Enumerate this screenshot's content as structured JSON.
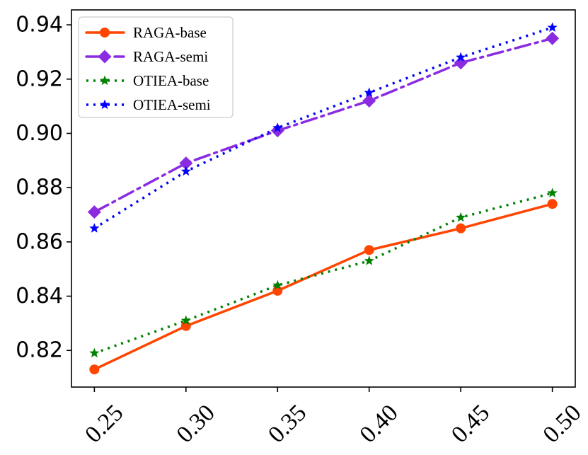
{
  "chart_data": {
    "type": "line",
    "title": "",
    "xlabel": "",
    "ylabel": "",
    "x": [
      0.25,
      0.3,
      0.35,
      0.4,
      0.45,
      0.5
    ],
    "x_tick_labels": [
      "0.25",
      "0.30",
      "0.35",
      "0.40",
      "0.45",
      "0.50"
    ],
    "xlim": [
      0.2375,
      0.5125
    ],
    "ylim": [
      0.8065,
      0.9455
    ],
    "y_ticks": [
      0.82,
      0.84,
      0.86,
      0.88,
      0.9,
      0.92,
      0.94
    ],
    "y_tick_labels": [
      "0.82",
      "0.84",
      "0.86",
      "0.88",
      "0.90",
      "0.92",
      "0.94"
    ],
    "x_tick_rotation_deg": 45,
    "grid": false,
    "legend_position": "top-left",
    "series": [
      {
        "name": "RAGA-base",
        "values": [
          0.813,
          0.829,
          0.842,
          0.857,
          0.865,
          0.874
        ],
        "color": "#ff4500",
        "line_style": "solid",
        "marker": "circle"
      },
      {
        "name": "RAGA-semi",
        "values": [
          0.871,
          0.889,
          0.901,
          0.912,
          0.926,
          0.935
        ],
        "color": "#8a2be2",
        "line_style": "dashdot",
        "marker": "diamond"
      },
      {
        "name": "OTIEA-base",
        "values": [
          0.819,
          0.831,
          0.844,
          0.853,
          0.869,
          0.878
        ],
        "color": "#008000",
        "line_style": "dotted",
        "marker": "star"
      },
      {
        "name": "OTIEA-semi",
        "values": [
          0.865,
          0.886,
          0.902,
          0.915,
          0.928,
          0.939
        ],
        "color": "#0000ff",
        "line_style": "dotted",
        "marker": "star"
      }
    ]
  }
}
